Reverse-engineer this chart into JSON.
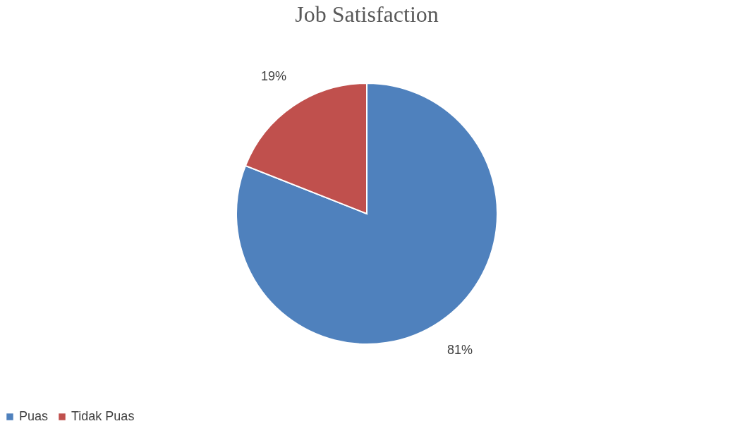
{
  "chart_data": {
    "type": "pie",
    "title": "Job Satisfaction",
    "categories": [
      "Puas",
      "Tidak Puas"
    ],
    "values": [
      81,
      19
    ],
    "colors": [
      "#4f81bd",
      "#c0504d"
    ],
    "value_labels": [
      "81%",
      "19%"
    ],
    "legend": "bottom"
  }
}
